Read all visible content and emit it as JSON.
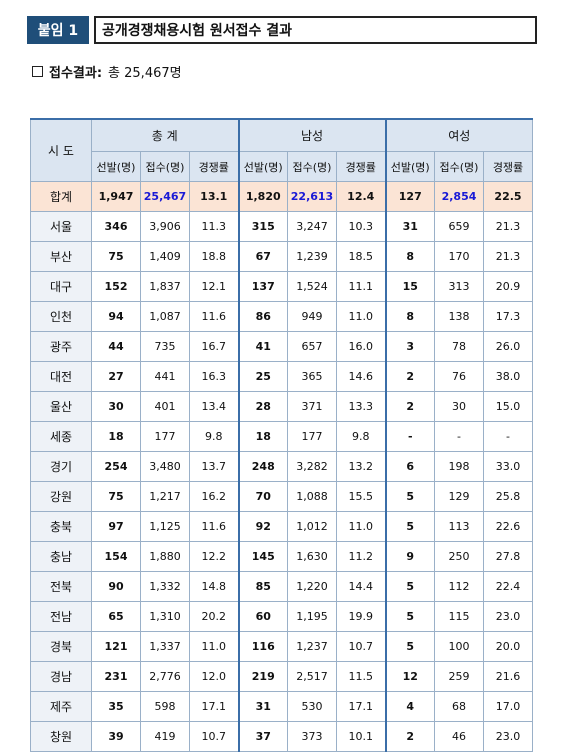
{
  "header": {
    "tag": "붙임 1",
    "title": "공개경쟁채용시험 원서접수 결과"
  },
  "summary": {
    "label": "접수결과:",
    "value": "총 25,467명"
  },
  "table": {
    "region_header": "시 도",
    "groups": [
      "총 계",
      "남성",
      "여성"
    ],
    "subheaders": [
      "선발(명)",
      "접수(명)",
      "경쟁률"
    ],
    "total": {
      "region": "합계",
      "values": [
        "1,947",
        "25,467",
        "13.1",
        "1,820",
        "22,613",
        "12.4",
        "127",
        "2,854",
        "22.5"
      ]
    },
    "rows": [
      {
        "region": "서울",
        "values": [
          "346",
          "3,906",
          "11.3",
          "315",
          "3,247",
          "10.3",
          "31",
          "659",
          "21.3"
        ]
      },
      {
        "region": "부산",
        "values": [
          "75",
          "1,409",
          "18.8",
          "67",
          "1,239",
          "18.5",
          "8",
          "170",
          "21.3"
        ]
      },
      {
        "region": "대구",
        "values": [
          "152",
          "1,837",
          "12.1",
          "137",
          "1,524",
          "11.1",
          "15",
          "313",
          "20.9"
        ]
      },
      {
        "region": "인천",
        "values": [
          "94",
          "1,087",
          "11.6",
          "86",
          "949",
          "11.0",
          "8",
          "138",
          "17.3"
        ]
      },
      {
        "region": "광주",
        "values": [
          "44",
          "735",
          "16.7",
          "41",
          "657",
          "16.0",
          "3",
          "78",
          "26.0"
        ]
      },
      {
        "region": "대전",
        "values": [
          "27",
          "441",
          "16.3",
          "25",
          "365",
          "14.6",
          "2",
          "76",
          "38.0"
        ]
      },
      {
        "region": "울산",
        "values": [
          "30",
          "401",
          "13.4",
          "28",
          "371",
          "13.3",
          "2",
          "30",
          "15.0"
        ]
      },
      {
        "region": "세종",
        "values": [
          "18",
          "177",
          "9.8",
          "18",
          "177",
          "9.8",
          "-",
          "-",
          "-"
        ]
      },
      {
        "region": "경기",
        "values": [
          "254",
          "3,480",
          "13.7",
          "248",
          "3,282",
          "13.2",
          "6",
          "198",
          "33.0"
        ]
      },
      {
        "region": "강원",
        "values": [
          "75",
          "1,217",
          "16.2",
          "70",
          "1,088",
          "15.5",
          "5",
          "129",
          "25.8"
        ]
      },
      {
        "region": "충북",
        "values": [
          "97",
          "1,125",
          "11.6",
          "92",
          "1,012",
          "11.0",
          "5",
          "113",
          "22.6"
        ]
      },
      {
        "region": "충남",
        "values": [
          "154",
          "1,880",
          "12.2",
          "145",
          "1,630",
          "11.2",
          "9",
          "250",
          "27.8"
        ]
      },
      {
        "region": "전북",
        "values": [
          "90",
          "1,332",
          "14.8",
          "85",
          "1,220",
          "14.4",
          "5",
          "112",
          "22.4"
        ]
      },
      {
        "region": "전남",
        "values": [
          "65",
          "1,310",
          "20.2",
          "60",
          "1,195",
          "19.9",
          "5",
          "115",
          "23.0"
        ]
      },
      {
        "region": "경북",
        "values": [
          "121",
          "1,337",
          "11.0",
          "116",
          "1,237",
          "10.7",
          "5",
          "100",
          "20.0"
        ]
      },
      {
        "region": "경남",
        "values": [
          "231",
          "2,776",
          "12.0",
          "219",
          "2,517",
          "11.5",
          "12",
          "259",
          "21.6"
        ]
      },
      {
        "region": "제주",
        "values": [
          "35",
          "598",
          "17.1",
          "31",
          "530",
          "17.1",
          "4",
          "68",
          "17.0"
        ]
      },
      {
        "region": "창원",
        "values": [
          "39",
          "419",
          "10.7",
          "37",
          "373",
          "10.1",
          "2",
          "46",
          "23.0"
        ]
      }
    ]
  }
}
